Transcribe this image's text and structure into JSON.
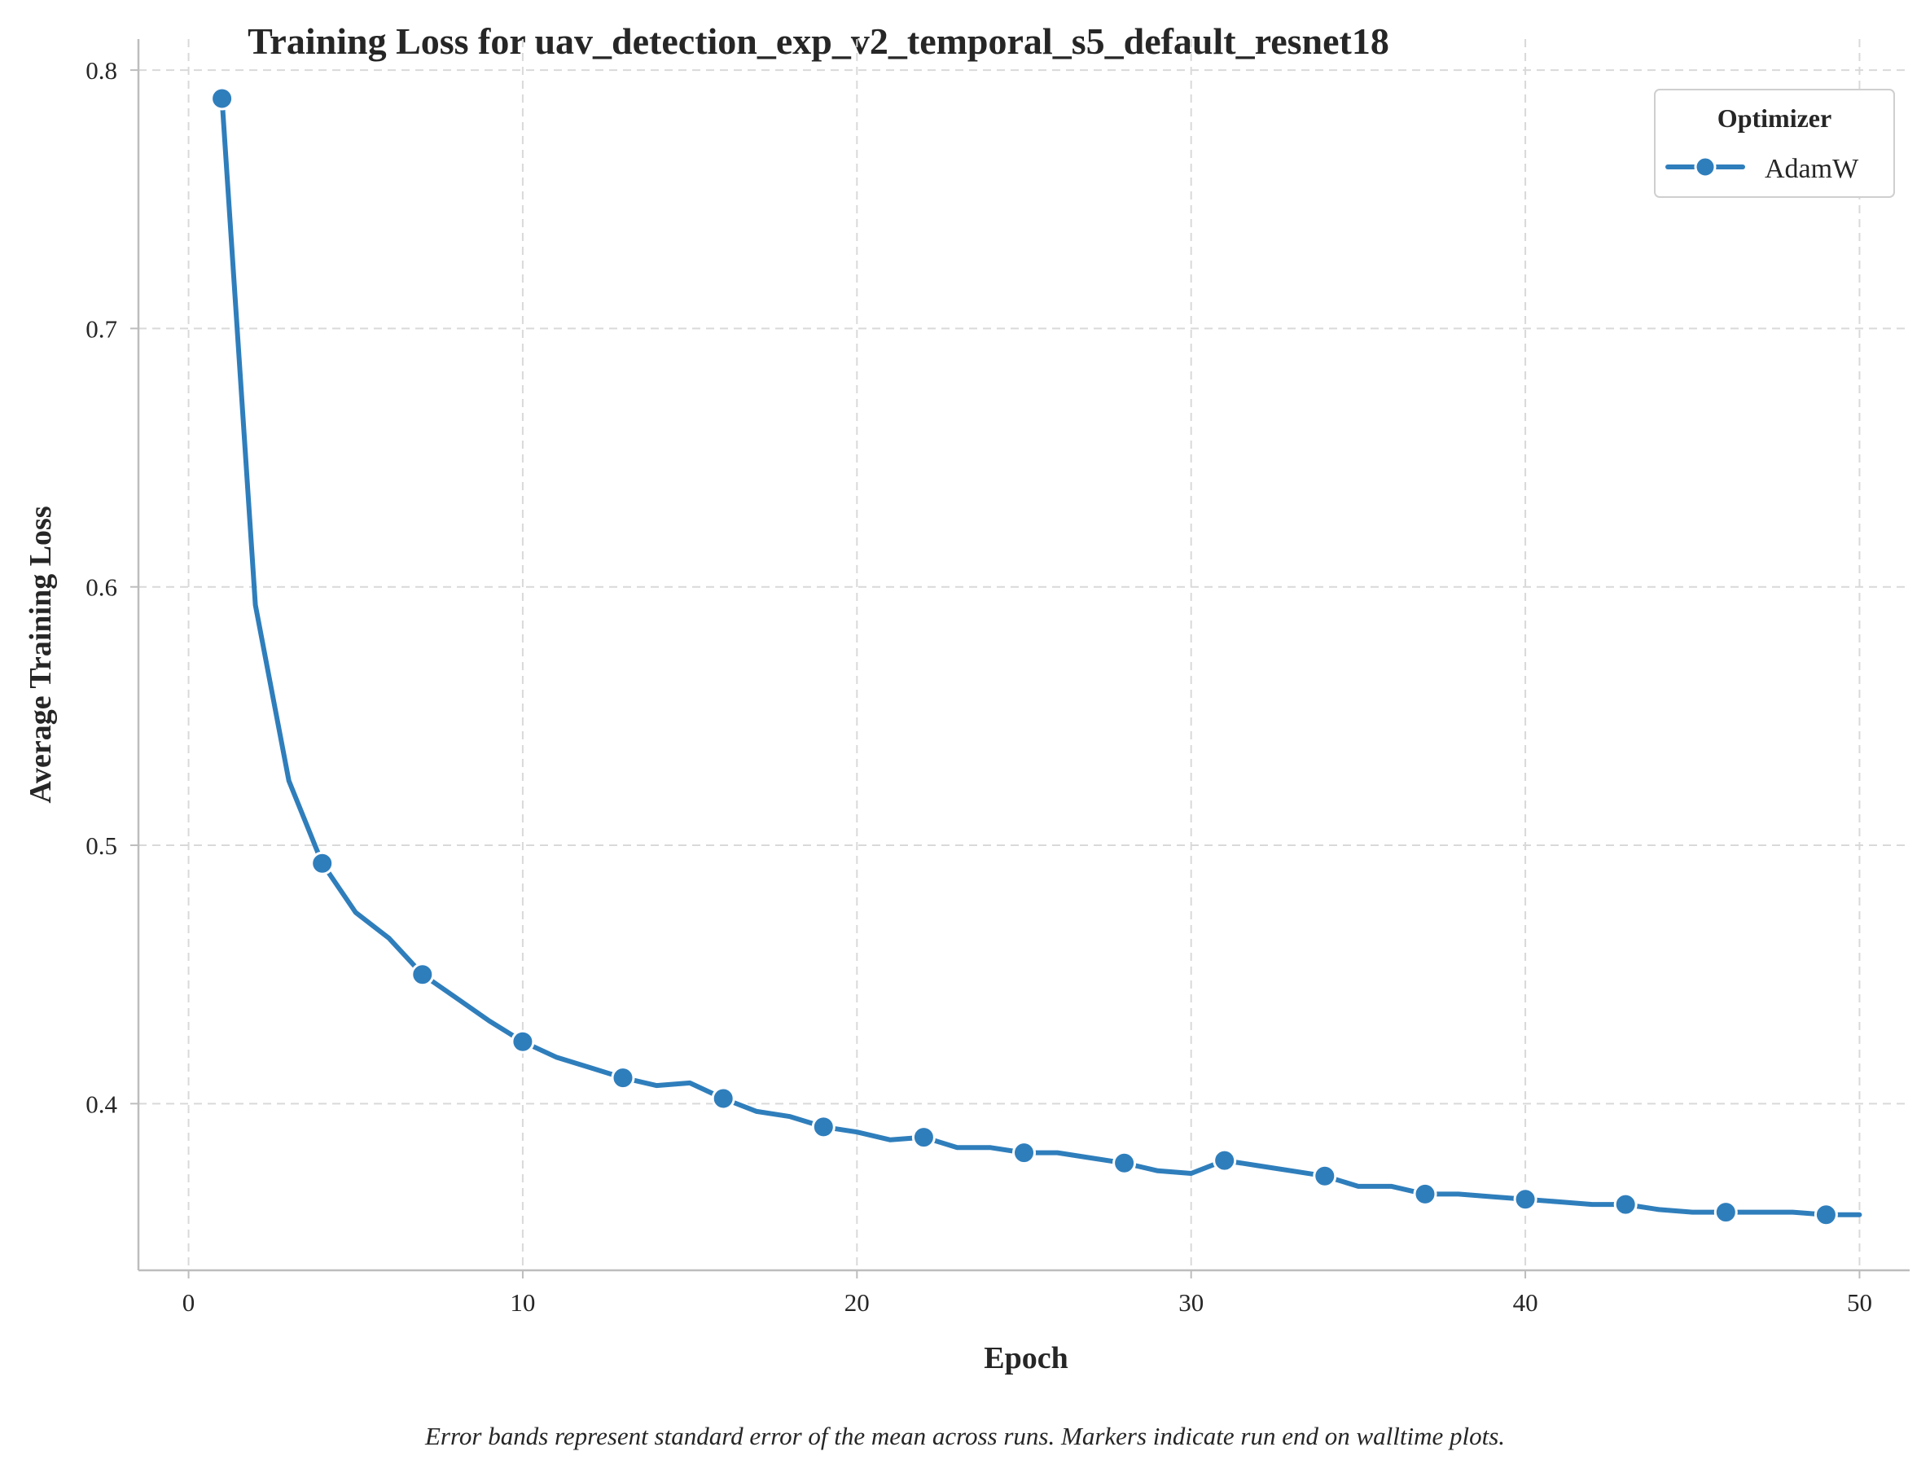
{
  "chart_data": {
    "type": "line",
    "title": "Training Loss for uav_detection_exp_v2_temporal_s5_default_resnet18",
    "xlabel": "Epoch",
    "ylabel": "Average Training Loss",
    "xlim": [
      -1.5,
      51.5
    ],
    "ylim": [
      0.3355,
      0.812
    ],
    "xticks": [
      0,
      10,
      20,
      30,
      40,
      50
    ],
    "yticks": [
      0.4,
      0.5,
      0.6,
      0.7,
      0.8
    ],
    "xtick_labels": [
      "0",
      "10",
      "20",
      "30",
      "40",
      "50"
    ],
    "ytick_labels": [
      "0.4",
      "0.5",
      "0.6",
      "0.7",
      "0.8"
    ],
    "grid": true,
    "legend": {
      "title": "Optimizer",
      "placement": "top-right"
    },
    "series": [
      {
        "name": "AdamW",
        "color": "#2f7ebc",
        "marker_every": 3,
        "x": [
          1,
          2,
          3,
          4,
          5,
          6,
          7,
          8,
          9,
          10,
          11,
          12,
          13,
          14,
          15,
          16,
          17,
          18,
          19,
          20,
          21,
          22,
          23,
          24,
          25,
          26,
          27,
          28,
          29,
          30,
          31,
          32,
          33,
          34,
          35,
          36,
          37,
          38,
          39,
          40,
          41,
          42,
          43,
          44,
          45,
          46,
          47,
          48,
          49,
          50
        ],
        "values": [
          0.789,
          0.593,
          0.525,
          0.493,
          0.474,
          0.464,
          0.45,
          0.441,
          0.432,
          0.424,
          0.418,
          0.414,
          0.41,
          0.407,
          0.408,
          0.402,
          0.397,
          0.395,
          0.391,
          0.389,
          0.386,
          0.387,
          0.383,
          0.383,
          0.381,
          0.381,
          0.379,
          0.377,
          0.374,
          0.373,
          0.378,
          0.376,
          0.374,
          0.372,
          0.368,
          0.368,
          0.365,
          0.365,
          0.364,
          0.363,
          0.362,
          0.361,
          0.361,
          0.359,
          0.358,
          0.358,
          0.358,
          0.358,
          0.357,
          0.357
        ]
      }
    ]
  },
  "caption": "Error bands represent standard error of the mean across runs. Markers indicate run end on walltime plots."
}
